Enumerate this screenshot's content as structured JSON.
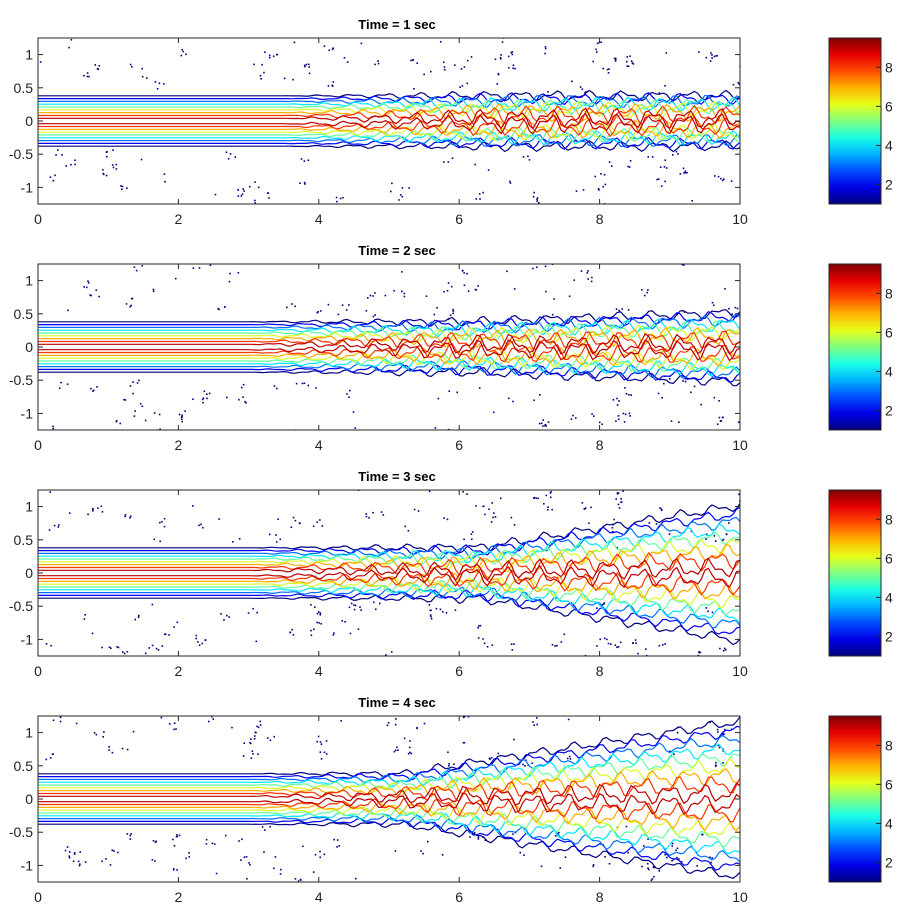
{
  "chart_data": [
    {
      "type": "contour",
      "title": "Time = 1 sec",
      "x_ticks": [
        "0",
        "2",
        "4",
        "6",
        "8",
        "10"
      ],
      "y_ticks": [
        "1",
        "0.5",
        "0",
        "-0.5",
        "-1"
      ],
      "xlim": [
        0,
        10
      ],
      "ylim": [
        -1.25,
        1.25
      ],
      "colorbar": {
        "colormap": "jet",
        "ticks": [
          "8",
          "6",
          "4",
          "2"
        ],
        "range": [
          1,
          9.5
        ]
      },
      "contour_levels": [
        1,
        2,
        3,
        4,
        5,
        6,
        7,
        8,
        9
      ],
      "jet_width": 0.36,
      "spread_start_x": 10,
      "spread_end_width": 0.36,
      "turbulence_start_x": 3.5
    },
    {
      "type": "contour",
      "title": "Time = 2 sec",
      "x_ticks": [
        "0",
        "2",
        "4",
        "6",
        "8",
        "10"
      ],
      "y_ticks": [
        "1",
        "0.5",
        "0",
        "-0.5",
        "-1"
      ],
      "xlim": [
        0,
        10
      ],
      "ylim": [
        -1.25,
        1.25
      ],
      "colorbar": {
        "colormap": "jet",
        "ticks": [
          "8",
          "6",
          "4",
          "2"
        ],
        "range": [
          1,
          9.5
        ]
      },
      "contour_levels": [
        1,
        2,
        3,
        4,
        5,
        6,
        7,
        8,
        9
      ],
      "jet_width": 0.36,
      "spread_start_x": 6.2,
      "spread_end_width": 0.5,
      "turbulence_start_x": 3
    },
    {
      "type": "contour",
      "title": "Time = 3 sec",
      "x_ticks": [
        "0",
        "2",
        "4",
        "6",
        "8",
        "10"
      ],
      "y_ticks": [
        "1",
        "0.5",
        "0",
        "-0.5",
        "-1"
      ],
      "xlim": [
        0,
        10
      ],
      "ylim": [
        -1.25,
        1.25
      ],
      "colorbar": {
        "colormap": "jet",
        "ticks": [
          "8",
          "6",
          "4",
          "2"
        ],
        "range": [
          1,
          9.5
        ]
      },
      "contour_levels": [
        1,
        2,
        3,
        4,
        5,
        6,
        7,
        8,
        9
      ],
      "jet_width": 0.36,
      "spread_start_x": 6.3,
      "spread_end_width": 1.0,
      "turbulence_start_x": 3
    },
    {
      "type": "contour",
      "title": "Time = 4 sec",
      "x_ticks": [
        "0",
        "2",
        "4",
        "6",
        "8",
        "10"
      ],
      "y_ticks": [
        "1",
        "0.5",
        "0",
        "-0.5",
        "-1"
      ],
      "xlim": [
        0,
        10
      ],
      "ylim": [
        -1.25,
        1.25
      ],
      "colorbar": {
        "colormap": "jet",
        "ticks": [
          "8",
          "6",
          "4",
          "2"
        ],
        "range": [
          1,
          9.5
        ]
      },
      "contour_levels": [
        1,
        2,
        3,
        4,
        5,
        6,
        7,
        8,
        9
      ],
      "jet_width": 0.36,
      "spread_start_x": 5.2,
      "spread_end_width": 1.15,
      "turbulence_start_x": 3
    }
  ]
}
